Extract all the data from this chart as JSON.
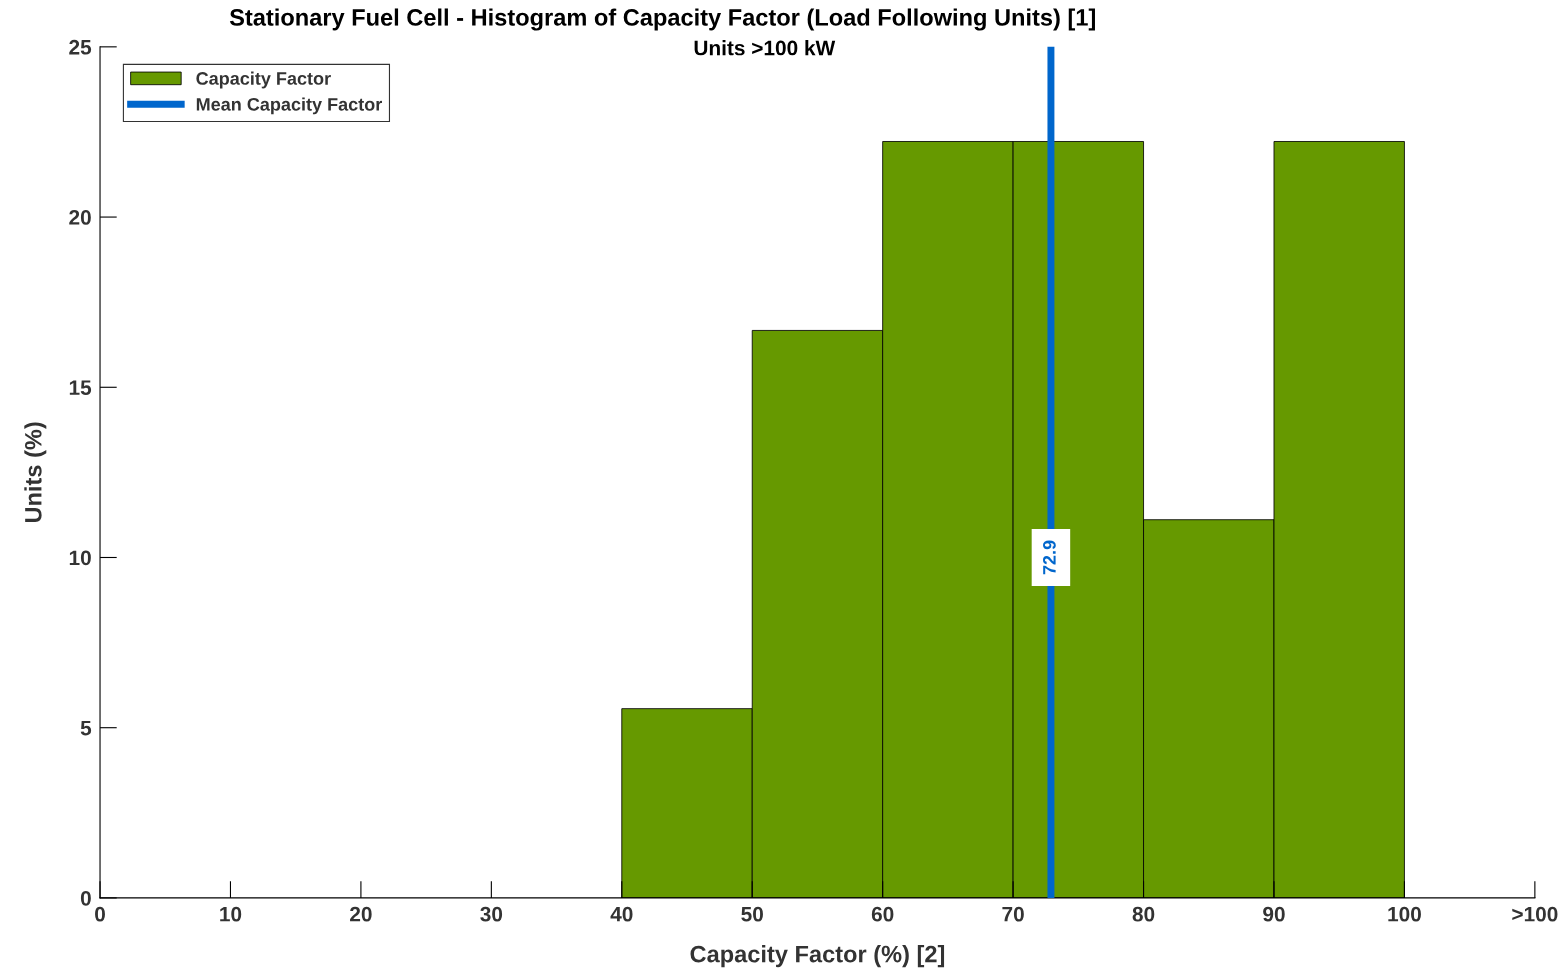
{
  "chart_data": {
    "type": "histogram",
    "title": "Stationary Fuel Cell - Histogram of Capacity Factor (Load Following Units) [1]",
    "subtitle": "Units >100 kW",
    "xlabel": "Capacity Factor (%) [2]",
    "ylabel": "Units (%)",
    "bins": [
      40,
      50,
      60,
      70,
      80,
      90,
      100
    ],
    "series": [
      {
        "name": "Capacity Factor",
        "color": "#669900",
        "values": [
          5.56,
          16.67,
          22.22,
          22.22,
          11.11,
          22.22
        ]
      },
      {
        "type": "line",
        "name": "Mean Capacity Factor",
        "color": "#0066cc",
        "x": [
          72.9,
          72.9
        ],
        "values": [
          0,
          25
        ]
      }
    ],
    "xlim": [
      0,
      110
    ],
    "xticks": [
      0,
      10,
      20,
      30,
      40,
      50,
      60,
      70,
      80,
      90,
      100,
      {
        "value": 110,
        "label": ">100"
      }
    ],
    "ylim": [
      0,
      25
    ],
    "yticks": [
      0,
      5,
      10,
      15,
      20,
      25
    ],
    "annotations": [
      {
        "text": "72.9",
        "x": 72.9,
        "y": 10
      }
    ],
    "grid": false,
    "legend": "top left"
  }
}
